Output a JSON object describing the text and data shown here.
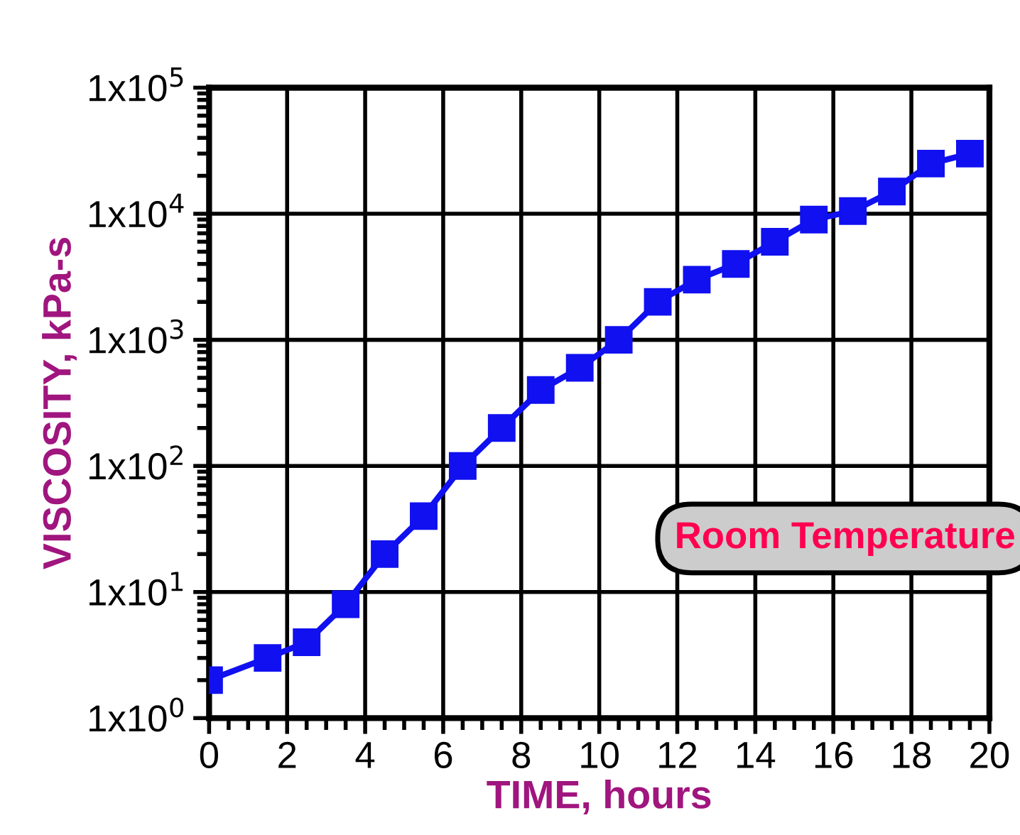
{
  "chart_data": {
    "type": "line",
    "xlabel": "TIME, hours",
    "ylabel": "VISCOSITY, kPa-s",
    "x": [
      0,
      1.5,
      2.5,
      3.5,
      4.5,
      5.5,
      6.5,
      7.5,
      8.5,
      9.5,
      10.5,
      11.5,
      12.5,
      13.5,
      14.5,
      15.5,
      16.5,
      17.5,
      18.5,
      19.5
    ],
    "series": [
      {
        "color": "#1010f0",
        "values": [
          2,
          3,
          4,
          8,
          20,
          40,
          100,
          200,
          400,
          600,
          1000,
          2000,
          3000,
          4000,
          6000,
          9000,
          10500,
          15000,
          25000,
          30000
        ]
      }
    ],
    "log": "y",
    "xlim": [
      0,
      20
    ],
    "xticks": [
      0,
      2,
      4,
      6,
      8,
      10,
      12,
      14,
      16,
      18,
      20
    ],
    "ylim": [
      1,
      100000
    ],
    "yticks": [
      {
        "value": 1,
        "label": "1x10$^{0}$"
      },
      {
        "value": 10,
        "label": "1x10$^{1}$"
      },
      {
        "value": 100,
        "label": "1x10$^{2}$"
      },
      {
        "value": 1000,
        "label": "1x10$^{3}$"
      },
      {
        "value": 10000,
        "label": "1x10$^{4}$"
      },
      {
        "value": 100000,
        "label": "1x10$^{5}$"
      }
    ],
    "grid": true,
    "marker": "square",
    "line_style": "solid",
    "annotations": [
      "Room Temperature"
    ]
  }
}
